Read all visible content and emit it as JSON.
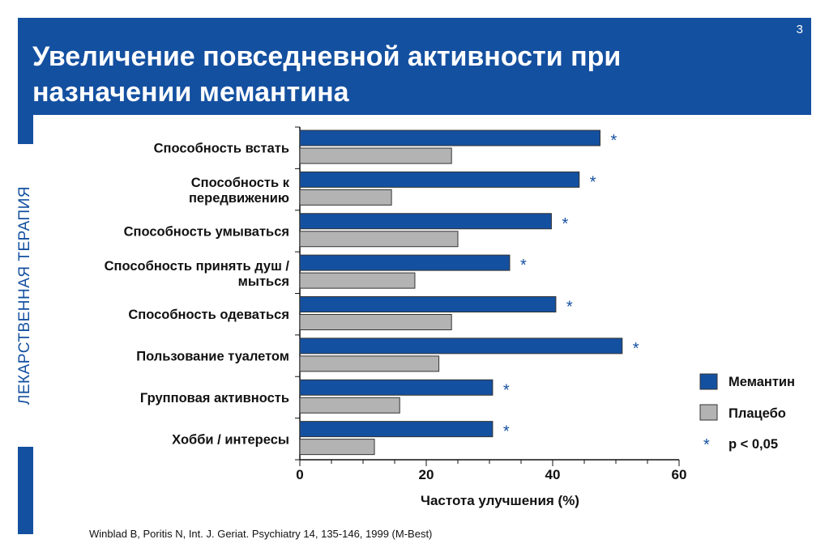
{
  "header": {
    "title": "Увеличение повседневной активности при\nназначении мемантина",
    "slide_number": "3"
  },
  "sidebar": {
    "text": "ЛЕКАРСТВЕННАЯ ТЕРАПИЯ"
  },
  "colors": {
    "brand": "#1450a0",
    "memantine": "#1450a0",
    "placebo": "#b3b3b3"
  },
  "chart_data": {
    "type": "bar",
    "orientation": "horizontal",
    "categories": [
      [
        "Способность встать"
      ],
      [
        "Способность к",
        "передвижению"
      ],
      [
        "Способность умываться"
      ],
      [
        "Способность принять душ /",
        "мыться"
      ],
      [
        "Способность одеваться"
      ],
      [
        "Пользование туалетом"
      ],
      [
        "Групповая активность"
      ],
      [
        "Хобби / интересы"
      ]
    ],
    "series": [
      {
        "name": "Мемантин",
        "values": [
          47.5,
          44.2,
          39.8,
          33.2,
          40.5,
          51,
          30.5,
          30.5
        ]
      },
      {
        "name": "Плацебо",
        "values": [
          24,
          14.5,
          25,
          18.2,
          24,
          22,
          15.8,
          11.8
        ]
      }
    ],
    "significant": [
      true,
      true,
      true,
      true,
      true,
      true,
      true,
      true
    ],
    "significance_marker": "*",
    "xlabel": "Частота улучшения  (%)",
    "xlim": [
      0,
      60
    ],
    "xticks": [
      0,
      20,
      40,
      60
    ],
    "legend": {
      "placement": "right",
      "memantine_label": "Мемантин",
      "placebo_label": "Плацебо",
      "significance_label": "p < 0,05"
    }
  },
  "citation": "Winblad B, Poritis N, Int. J. Geriat. Psychiatry 14, 135-146, 1999 (M-Best)"
}
